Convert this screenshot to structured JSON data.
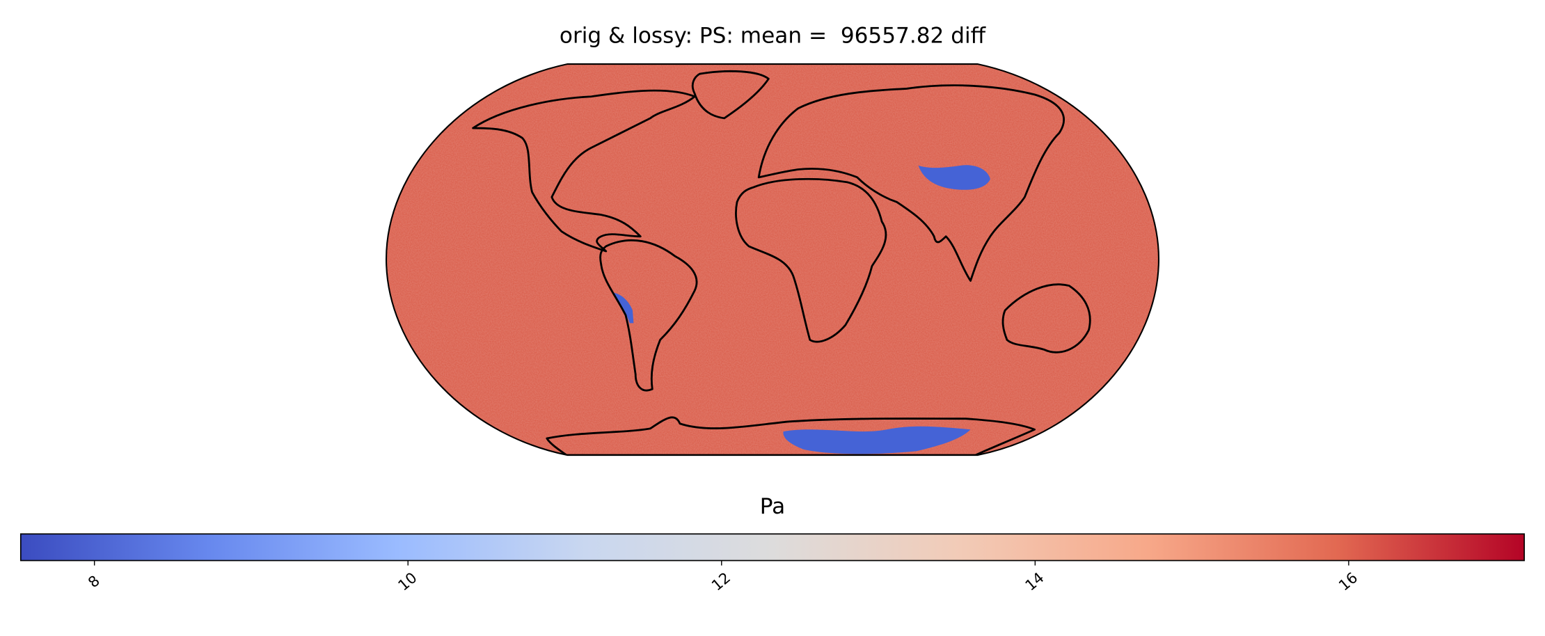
{
  "title": "orig & lossy: PS: mean =  96557.82 diff",
  "colorbar": {
    "label": "Pa",
    "lim": [
      7.53,
      17.12
    ],
    "ticks": [
      8,
      10,
      12,
      14,
      16
    ],
    "colors": [
      "#3b4cc0",
      "#6788ee",
      "#9abbff",
      "#c9d7f0",
      "#dddcdc",
      "#f2cbb7",
      "#f7a889",
      "#e26952",
      "#b40426"
    ]
  },
  "map": {
    "field_color": "#d95a47",
    "low_color": "#4563d6"
  }
}
